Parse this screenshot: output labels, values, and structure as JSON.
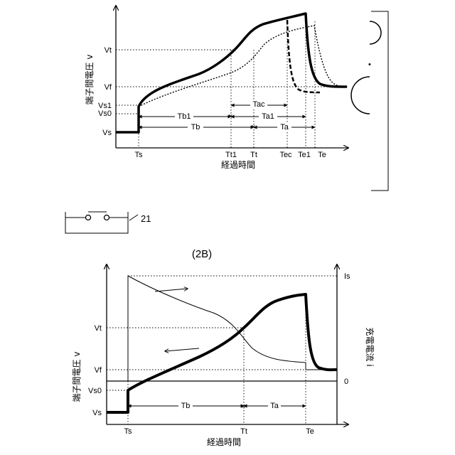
{
  "top": {
    "y_label": "端子間電圧 v",
    "x_label": "経過時間",
    "y_ticks": [
      "Vt",
      "Vf",
      "Vs1",
      "Vs0",
      "Vs"
    ],
    "x_ticks": [
      "Ts",
      "Tt1",
      "Tt",
      "Tec",
      "Te1",
      "Te"
    ],
    "intervals": [
      "Tac",
      "Tb1",
      "Ta1",
      "Tb",
      "Ta"
    ]
  },
  "side": {
    "label": "21"
  },
  "bottom": {
    "title": "(2B)",
    "y_label": "端子間電圧 v",
    "y2_label": "充電電流 i",
    "x_label": "経過時間",
    "y_ticks": [
      "Vt",
      "Vf",
      "Vs0",
      "Vs"
    ],
    "y2_ticks": [
      "Is",
      "0"
    ],
    "x_ticks": [
      "Ts",
      "Tt",
      "Te"
    ],
    "intervals": [
      "Tb",
      "Ta"
    ]
  }
}
